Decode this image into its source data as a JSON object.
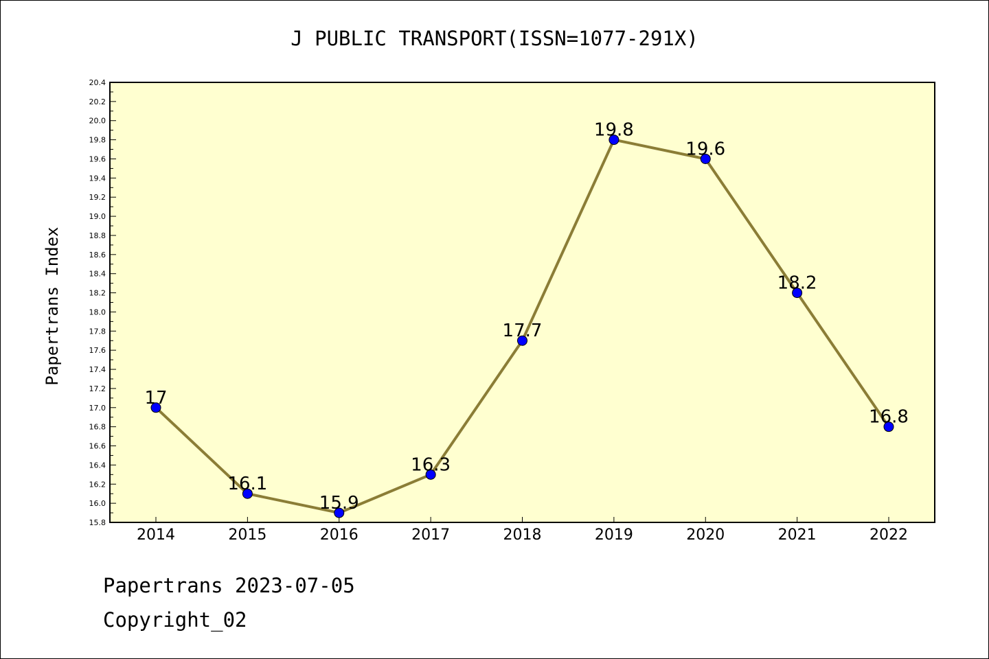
{
  "colors": {
    "plot_background": "#ffffd0",
    "line": "#8b7d36",
    "marker": "#0000ff",
    "text": "#000000"
  },
  "footer": {
    "date_text": "Papertrans 2023-07-05",
    "copyright_text": "Copyright_02"
  },
  "chart_data": {
    "type": "line",
    "title": "J PUBLIC TRANSPORT(ISSN=1077-291X)",
    "xlabel": "",
    "ylabel": "Papertrans Index",
    "x": [
      "2014",
      "2015",
      "2016",
      "2017",
      "2018",
      "2019",
      "2020",
      "2021",
      "2022"
    ],
    "series": [
      {
        "values": [
          17,
          16.1,
          15.9,
          16.3,
          17.7,
          19.8,
          19.6,
          18.2,
          16.8
        ],
        "data_labels": [
          "17",
          "16.1",
          "15.9",
          "16.3",
          "17.7",
          "19.8",
          "19.6",
          "18.2",
          "16.8"
        ]
      }
    ],
    "ylim": [
      15.8,
      20.4
    ],
    "yticks": [
      "15.8",
      "16.0",
      "16.2",
      "16.4",
      "16.6",
      "16.8",
      "17.0",
      "17.2",
      "17.4",
      "17.6",
      "17.8",
      "18.0",
      "18.2",
      "18.4",
      "18.6",
      "18.8",
      "19.0",
      "19.2",
      "19.4",
      "19.6",
      "19.8",
      "20.0",
      "20.2",
      "20.4"
    ],
    "grid": false,
    "legend": "none"
  }
}
